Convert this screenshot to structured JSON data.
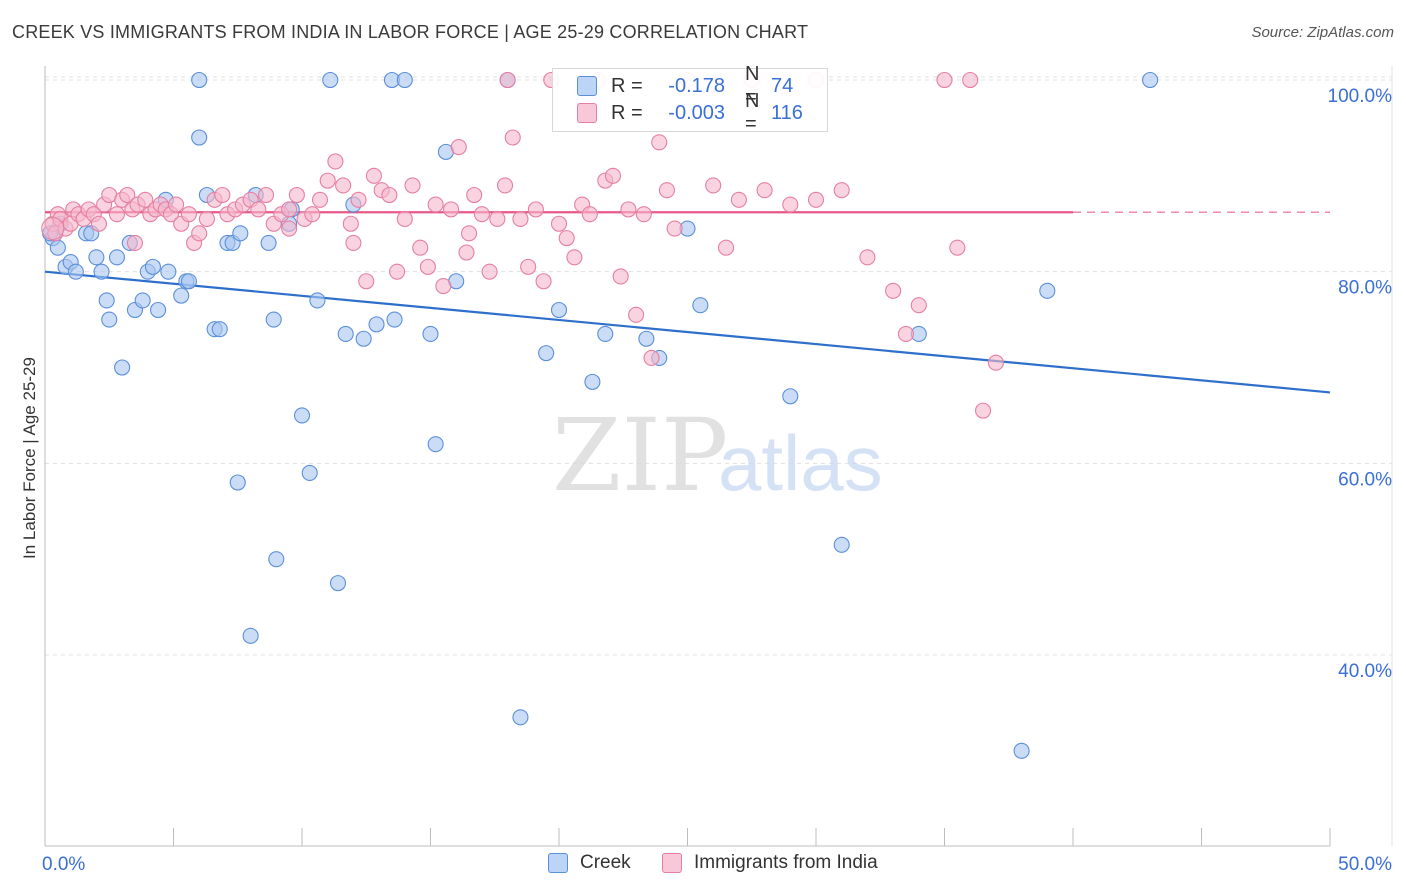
{
  "title": "CREEK VS IMMIGRANTS FROM INDIA IN LABOR FORCE | AGE 25-29 CORRELATION CHART",
  "source": "Source: ZipAtlas.com",
  "watermark": {
    "zip": "ZIP",
    "atlas": "atlas"
  },
  "legend_top": {
    "r_label": "R =",
    "n_label": "N =",
    "series": [
      {
        "r": "-0.178",
        "n": "74"
      },
      {
        "r": "-0.003",
        "n": "116"
      }
    ]
  },
  "colors": {
    "blue_fill": "#a9c7f0",
    "blue_stroke": "#5b8fd9",
    "blue_line": "#2f6fcc",
    "pink_fill": "#f5b8cc",
    "pink_stroke": "#e57fa2",
    "pink_line": "#e8578a",
    "tick_label": "#3a6fd6",
    "grid": "#e0e0e0"
  },
  "chart_data": {
    "type": "scatter",
    "title": "CREEK VS IMMIGRANTS FROM INDIA IN LABOR FORCE | AGE 25-29 CORRELATION CHART",
    "xlabel": "",
    "ylabel": "In Labor Force | Age 25-29",
    "xlim": [
      0,
      50
    ],
    "ylim": [
      20,
      102
    ],
    "x_tick_labels": [
      "0.0%",
      "50.0%"
    ],
    "y_ticks": [
      40,
      60,
      80,
      100
    ],
    "y_tick_labels": [
      "40.0%",
      "60.0%",
      "80.0%",
      "100.0%"
    ],
    "grid": true,
    "legend_placement": "top-center and bottom",
    "series": [
      {
        "name": "Creek",
        "r": -0.178,
        "n": 74,
        "trend": {
          "x": [
            0,
            50
          ],
          "y": [
            80.0,
            67.4
          ],
          "dashed_from": null
        },
        "points": [
          [
            0.3,
            83.5
          ],
          [
            0.5,
            82.5
          ],
          [
            0.6,
            85.0
          ],
          [
            0.8,
            80.5
          ],
          [
            1.0,
            81.0
          ],
          [
            1.2,
            80.0
          ],
          [
            1.6,
            84.0
          ],
          [
            1.8,
            84.0
          ],
          [
            2.0,
            81.5
          ],
          [
            2.2,
            80.0
          ],
          [
            2.4,
            77.0
          ],
          [
            2.5,
            75.0
          ],
          [
            2.8,
            81.5
          ],
          [
            3.0,
            70.0
          ],
          [
            3.3,
            83.0
          ],
          [
            3.5,
            76.0
          ],
          [
            3.8,
            77.0
          ],
          [
            4.0,
            80.0
          ],
          [
            4.2,
            80.5
          ],
          [
            4.4,
            76.0
          ],
          [
            4.7,
            87.5
          ],
          [
            4.8,
            80.0
          ],
          [
            5.3,
            77.5
          ],
          [
            5.5,
            79.0
          ],
          [
            5.6,
            79.0
          ],
          [
            6.0,
            94.0
          ],
          [
            6.0,
            100.0
          ],
          [
            6.3,
            88.0
          ],
          [
            6.6,
            74.0
          ],
          [
            6.8,
            74.0
          ],
          [
            7.1,
            83.0
          ],
          [
            7.3,
            83.0
          ],
          [
            7.5,
            58.0
          ],
          [
            7.6,
            84.0
          ],
          [
            8.0,
            42.0
          ],
          [
            8.2,
            88.0
          ],
          [
            8.7,
            83.0
          ],
          [
            8.9,
            75.0
          ],
          [
            9.0,
            50.0
          ],
          [
            9.5,
            85.0
          ],
          [
            9.6,
            86.5
          ],
          [
            10.0,
            65.0
          ],
          [
            10.3,
            59.0
          ],
          [
            10.6,
            77.0
          ],
          [
            11.1,
            100.0
          ],
          [
            11.4,
            47.5
          ],
          [
            11.7,
            73.5
          ],
          [
            12.0,
            87.0
          ],
          [
            12.4,
            73.0
          ],
          [
            12.9,
            74.5
          ],
          [
            13.5,
            100.0
          ],
          [
            13.6,
            75.0
          ],
          [
            14.0,
            100.0
          ],
          [
            15.0,
            73.5
          ],
          [
            15.2,
            62.0
          ],
          [
            15.6,
            92.5
          ],
          [
            16.0,
            79.0
          ],
          [
            18.0,
            100.0
          ],
          [
            18.5,
            33.5
          ],
          [
            19.5,
            71.5
          ],
          [
            20.0,
            76.0
          ],
          [
            21.3,
            68.5
          ],
          [
            21.8,
            73.5
          ],
          [
            23.4,
            73.0
          ],
          [
            23.9,
            71.0
          ],
          [
            25.0,
            84.5
          ],
          [
            25.5,
            76.5
          ],
          [
            29.0,
            67.0
          ],
          [
            31.0,
            51.5
          ],
          [
            34.0,
            73.5
          ],
          [
            38.0,
            30.0
          ],
          [
            39.0,
            78.0
          ],
          [
            43.0,
            100.0
          ],
          [
            0.2,
            84.0
          ]
        ]
      },
      {
        "name": "Immigrants from India",
        "r": -0.003,
        "n": 116,
        "trend": {
          "x": [
            0,
            40,
            50
          ],
          "y": [
            86.2,
            86.2,
            86.2
          ],
          "dashed_from": 40
        },
        "points": [
          [
            0.3,
            85.0
          ],
          [
            0.4,
            84.0
          ],
          [
            0.5,
            86.0
          ],
          [
            0.6,
            85.5
          ],
          [
            0.8,
            84.5
          ],
          [
            1.0,
            85.0
          ],
          [
            1.1,
            86.5
          ],
          [
            1.3,
            86.0
          ],
          [
            1.5,
            85.5
          ],
          [
            1.7,
            86.5
          ],
          [
            1.9,
            86.0
          ],
          [
            2.1,
            85.0
          ],
          [
            2.3,
            87.0
          ],
          [
            2.5,
            88.0
          ],
          [
            2.8,
            86.0
          ],
          [
            3.0,
            87.5
          ],
          [
            3.2,
            88.0
          ],
          [
            3.4,
            86.5
          ],
          [
            3.6,
            87.0
          ],
          [
            3.9,
            87.5
          ],
          [
            4.1,
            86.0
          ],
          [
            4.3,
            86.5
          ],
          [
            4.5,
            87.0
          ],
          [
            4.7,
            86.5
          ],
          [
            4.9,
            86.0
          ],
          [
            5.1,
            87.0
          ],
          [
            5.3,
            85.0
          ],
          [
            5.6,
            86.0
          ],
          [
            5.8,
            83.0
          ],
          [
            6.0,
            84.0
          ],
          [
            6.3,
            85.5
          ],
          [
            6.6,
            87.5
          ],
          [
            6.9,
            88.0
          ],
          [
            7.1,
            86.0
          ],
          [
            7.4,
            86.5
          ],
          [
            7.7,
            87.0
          ],
          [
            8.0,
            87.5
          ],
          [
            8.3,
            86.5
          ],
          [
            8.6,
            88.0
          ],
          [
            8.9,
            85.0
          ],
          [
            9.2,
            86.0
          ],
          [
            9.5,
            86.5
          ],
          [
            9.8,
            88.0
          ],
          [
            10.1,
            85.5
          ],
          [
            10.4,
            86.0
          ],
          [
            10.7,
            87.5
          ],
          [
            11.0,
            89.5
          ],
          [
            11.3,
            91.5
          ],
          [
            11.6,
            89.0
          ],
          [
            11.9,
            85.0
          ],
          [
            12.2,
            87.5
          ],
          [
            12.5,
            79.0
          ],
          [
            12.8,
            90.0
          ],
          [
            13.1,
            88.5
          ],
          [
            13.4,
            88.0
          ],
          [
            13.7,
            80.0
          ],
          [
            14.0,
            85.5
          ],
          [
            14.3,
            89.0
          ],
          [
            14.6,
            82.5
          ],
          [
            14.9,
            80.5
          ],
          [
            15.2,
            87.0
          ],
          [
            15.5,
            78.5
          ],
          [
            15.8,
            86.5
          ],
          [
            16.1,
            93.0
          ],
          [
            16.4,
            82.0
          ],
          [
            16.7,
            88.0
          ],
          [
            17.0,
            86.0
          ],
          [
            17.3,
            80.0
          ],
          [
            17.6,
            85.5
          ],
          [
            17.9,
            89.0
          ],
          [
            18.2,
            94.0
          ],
          [
            18.5,
            85.5
          ],
          [
            18.8,
            80.5
          ],
          [
            19.1,
            86.5
          ],
          [
            19.4,
            79.0
          ],
          [
            19.7,
            100.0
          ],
          [
            20.0,
            85.0
          ],
          [
            20.3,
            83.5
          ],
          [
            20.6,
            81.5
          ],
          [
            20.9,
            87.0
          ],
          [
            21.2,
            86.0
          ],
          [
            21.5,
            100.0
          ],
          [
            21.8,
            89.5
          ],
          [
            22.1,
            90.0
          ],
          [
            22.4,
            79.5
          ],
          [
            22.7,
            86.5
          ],
          [
            23.0,
            75.5
          ],
          [
            23.3,
            86.0
          ],
          [
            23.6,
            71.0
          ],
          [
            23.9,
            93.5
          ],
          [
            24.2,
            88.5
          ],
          [
            24.5,
            84.5
          ],
          [
            25.0,
            100.0
          ],
          [
            26.0,
            89.0
          ],
          [
            27.0,
            87.5
          ],
          [
            27.5,
            100.0
          ],
          [
            28.0,
            88.5
          ],
          [
            29.0,
            87.0
          ],
          [
            30.0,
            100.0
          ],
          [
            31.0,
            88.5
          ],
          [
            32.0,
            81.5
          ],
          [
            33.0,
            78.0
          ],
          [
            33.5,
            73.5
          ],
          [
            34.0,
            76.5
          ],
          [
            35.0,
            100.0
          ],
          [
            35.5,
            82.5
          ],
          [
            36.0,
            100.0
          ],
          [
            36.5,
            65.5
          ],
          [
            37.0,
            70.5
          ],
          [
            9.5,
            84.5
          ],
          [
            18.0,
            100.0
          ],
          [
            30.0,
            87.5
          ],
          [
            26.5,
            82.5
          ],
          [
            3.5,
            83.0
          ],
          [
            12.0,
            83.0
          ],
          [
            16.5,
            84.0
          ]
        ]
      }
    ]
  },
  "legend_bottom": {
    "items": [
      "Creek",
      "Immigrants from India"
    ]
  }
}
